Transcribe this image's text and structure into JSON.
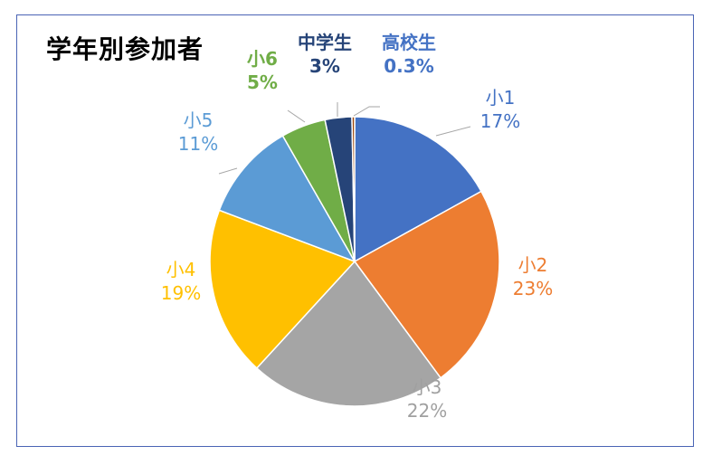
{
  "chart_data": {
    "type": "pie",
    "title": "学年別参加者",
    "slices": [
      {
        "label": "小1",
        "value": 17,
        "value_label": "17%",
        "color": "#4472c4"
      },
      {
        "label": "小2",
        "value": 23,
        "value_label": "23%",
        "color": "#ed7d31"
      },
      {
        "label": "小3",
        "value": 22,
        "value_label": "22%",
        "color": "#a5a5a5"
      },
      {
        "label": "小4",
        "value": 19,
        "value_label": "19%",
        "color": "#ffc000"
      },
      {
        "label": "小5",
        "value": 11,
        "value_label": "11%",
        "color": "#5b9bd5"
      },
      {
        "label": "小6",
        "value": 5,
        "value_label": "5%",
        "color": "#70ad47"
      },
      {
        "label": "中学生",
        "value": 3,
        "value_label": "3%",
        "color": "#264478"
      },
      {
        "label": "高校生",
        "value": 0.3,
        "value_label": "0.3%",
        "color": "#9e480e"
      }
    ],
    "legend": "none",
    "data_labels": "outside with leader lines"
  }
}
